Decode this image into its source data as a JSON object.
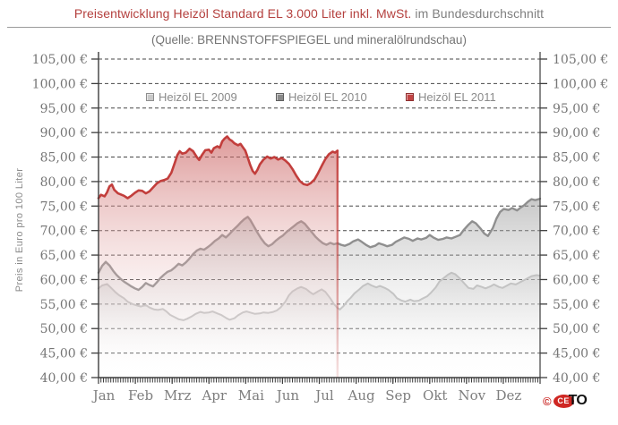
{
  "header": {
    "title_red": "Preisentwicklung Heizöl Standard EL 3.000 Liter inkl. MwSt.",
    "title_gray": "im Bundesdurchschnitt",
    "subtitle": "(Quelle: BRENNSTOFFSPIEGEL und mineralölrundschau)"
  },
  "logo": {
    "symbol": "©",
    "letters_ce": "CE",
    "letter_t": "T",
    "letter_o": "O"
  },
  "chart_data": {
    "type": "line",
    "title": "Preisentwicklung Heizöl Standard EL 3.000 Liter inkl. MwSt. im Bundesdurchschnitt",
    "subtitle": "(Quelle: BRENNSTOFFSPIEGEL und mineralölrundschau)",
    "xlabel": "",
    "ylabel": "Preis in Euro pro 100 Liter",
    "ylim": [
      40,
      105
    ],
    "ytick_step": 5,
    "ytick_suffix": " €",
    "number_format": "de-decimal-comma",
    "grid": "horizontal-dashed",
    "legend_position": "top-inside",
    "dual_y_axis": true,
    "categories": [
      "Jan",
      "Feb",
      "Mrz",
      "Apr",
      "Mai",
      "Jun",
      "Jul",
      "Aug",
      "Sep",
      "Okt",
      "Nov",
      "Dez"
    ],
    "x_unit": "day-of-year",
    "colors": {
      "grid": "#474747",
      "axis": "#3d3d3d",
      "tick_label": "#767676"
    },
    "series": [
      {
        "name": "Heizöl EL 2009",
        "color": "#c2c2c2",
        "line_width": 2,
        "fill_from": "rgba(200,200,200,0.50)",
        "fill_to": "rgba(255,255,255,0)",
        "points": [
          [
            1,
            58.2
          ],
          [
            4,
            58.8
          ],
          [
            8,
            59.1
          ],
          [
            11,
            58.4
          ],
          [
            15,
            57.4
          ],
          [
            18,
            56.8
          ],
          [
            22,
            56.2
          ],
          [
            25,
            55.5
          ],
          [
            29,
            55.0
          ],
          [
            33,
            54.7
          ],
          [
            36,
            54.5
          ],
          [
            40,
            54.8
          ],
          [
            43,
            54.3
          ],
          [
            47,
            53.9
          ],
          [
            50,
            53.8
          ],
          [
            54,
            54.0
          ],
          [
            57,
            53.5
          ],
          [
            60,
            52.8
          ],
          [
            64,
            52.3
          ],
          [
            67,
            51.9
          ],
          [
            71,
            51.7
          ],
          [
            74,
            52.0
          ],
          [
            78,
            52.5
          ],
          [
            81,
            53.0
          ],
          [
            85,
            53.4
          ],
          [
            88,
            53.2
          ],
          [
            92,
            53.3
          ],
          [
            95,
            53.5
          ],
          [
            99,
            53.1
          ],
          [
            102,
            52.8
          ],
          [
            106,
            52.2
          ],
          [
            109,
            51.8
          ],
          [
            113,
            52.1
          ],
          [
            116,
            52.7
          ],
          [
            120,
            53.3
          ],
          [
            123,
            53.5
          ],
          [
            127,
            53.2
          ],
          [
            130,
            53.0
          ],
          [
            134,
            53.1
          ],
          [
            137,
            53.3
          ],
          [
            141,
            53.2
          ],
          [
            145,
            53.4
          ],
          [
            148,
            53.7
          ],
          [
            151,
            54.3
          ],
          [
            155,
            55.5
          ],
          [
            158,
            56.8
          ],
          [
            161,
            57.6
          ],
          [
            165,
            58.2
          ],
          [
            168,
            58.5
          ],
          [
            172,
            58.1
          ],
          [
            175,
            57.5
          ],
          [
            178,
            57.0
          ],
          [
            182,
            57.6
          ],
          [
            185,
            58.0
          ],
          [
            188,
            57.5
          ],
          [
            192,
            56.2
          ],
          [
            195,
            55.0
          ],
          [
            198,
            54.2
          ],
          [
            200,
            53.9
          ],
          [
            203,
            54.6
          ],
          [
            206,
            55.6
          ],
          [
            209,
            56.3
          ],
          [
            212,
            57.2
          ],
          [
            216,
            58.0
          ],
          [
            219,
            58.7
          ],
          [
            223,
            59.2
          ],
          [
            226,
            58.8
          ],
          [
            230,
            58.4
          ],
          [
            233,
            58.7
          ],
          [
            237,
            58.3
          ],
          [
            240,
            57.9
          ],
          [
            244,
            57.1
          ],
          [
            247,
            56.2
          ],
          [
            251,
            55.7
          ],
          [
            254,
            55.5
          ],
          [
            258,
            55.9
          ],
          [
            261,
            55.6
          ],
          [
            265,
            55.7
          ],
          [
            268,
            56.1
          ],
          [
            272,
            56.6
          ],
          [
            275,
            57.3
          ],
          [
            279,
            58.4
          ],
          [
            282,
            59.6
          ],
          [
            286,
            60.4
          ],
          [
            289,
            61.0
          ],
          [
            292,
            61.4
          ],
          [
            295,
            61.1
          ],
          [
            299,
            60.2
          ],
          [
            303,
            59.1
          ],
          [
            306,
            58.3
          ],
          [
            310,
            58.1
          ],
          [
            313,
            58.8
          ],
          [
            317,
            58.5
          ],
          [
            320,
            58.2
          ],
          [
            324,
            58.6
          ],
          [
            327,
            59.0
          ],
          [
            331,
            58.5
          ],
          [
            334,
            58.3
          ],
          [
            338,
            58.8
          ],
          [
            341,
            59.2
          ],
          [
            345,
            59.0
          ],
          [
            348,
            59.4
          ],
          [
            352,
            59.9
          ],
          [
            355,
            60.3
          ],
          [
            358,
            60.7
          ],
          [
            362,
            60.9
          ],
          [
            365,
            60.8
          ]
        ]
      },
      {
        "name": "Heizöl EL 2010",
        "color": "#8f8f8f",
        "line_width": 2.4,
        "fill_from": "rgba(145,145,145,0.50)",
        "fill_to": "rgba(255,255,255,0)",
        "points": [
          [
            1,
            61.4
          ],
          [
            4,
            62.8
          ],
          [
            7,
            63.6
          ],
          [
            10,
            62.9
          ],
          [
            13,
            61.8
          ],
          [
            16,
            60.9
          ],
          [
            19,
            60.2
          ],
          [
            22,
            59.6
          ],
          [
            25,
            59.1
          ],
          [
            28,
            58.6
          ],
          [
            31,
            58.2
          ],
          [
            34,
            57.9
          ],
          [
            37,
            58.5
          ],
          [
            40,
            59.3
          ],
          [
            43,
            58.9
          ],
          [
            46,
            58.6
          ],
          [
            49,
            59.4
          ],
          [
            52,
            60.3
          ],
          [
            55,
            61.0
          ],
          [
            58,
            61.6
          ],
          [
            61,
            61.9
          ],
          [
            64,
            62.5
          ],
          [
            67,
            63.2
          ],
          [
            70,
            62.9
          ],
          [
            73,
            63.5
          ],
          [
            76,
            64.3
          ],
          [
            79,
            65.2
          ],
          [
            82,
            65.9
          ],
          [
            85,
            66.3
          ],
          [
            88,
            66.1
          ],
          [
            91,
            66.6
          ],
          [
            94,
            67.2
          ],
          [
            97,
            67.9
          ],
          [
            100,
            68.4
          ],
          [
            103,
            69.1
          ],
          [
            106,
            68.6
          ],
          [
            109,
            69.3
          ],
          [
            112,
            70.1
          ],
          [
            115,
            70.8
          ],
          [
            118,
            71.6
          ],
          [
            121,
            72.3
          ],
          [
            124,
            72.8
          ],
          [
            126,
            72.2
          ],
          [
            129,
            70.9
          ],
          [
            132,
            69.6
          ],
          [
            135,
            68.4
          ],
          [
            138,
            67.4
          ],
          [
            141,
            66.8
          ],
          [
            144,
            67.2
          ],
          [
            147,
            67.9
          ],
          [
            150,
            68.5
          ],
          [
            153,
            69.0
          ],
          [
            156,
            69.7
          ],
          [
            159,
            70.3
          ],
          [
            162,
            70.9
          ],
          [
            165,
            71.5
          ],
          [
            168,
            71.9
          ],
          [
            171,
            71.4
          ],
          [
            174,
            70.5
          ],
          [
            177,
            69.6
          ],
          [
            180,
            68.7
          ],
          [
            183,
            68.0
          ],
          [
            186,
            67.4
          ],
          [
            189,
            67.1
          ],
          [
            192,
            67.5
          ],
          [
            195,
            67.2
          ],
          [
            198,
            67.4
          ],
          [
            201,
            67.1
          ],
          [
            204,
            66.9
          ],
          [
            208,
            67.3
          ],
          [
            211,
            67.8
          ],
          [
            215,
            68.2
          ],
          [
            218,
            67.7
          ],
          [
            222,
            67.0
          ],
          [
            225,
            66.6
          ],
          [
            229,
            66.9
          ],
          [
            232,
            67.4
          ],
          [
            236,
            67.1
          ],
          [
            239,
            66.8
          ],
          [
            243,
            67.1
          ],
          [
            246,
            67.7
          ],
          [
            250,
            68.2
          ],
          [
            253,
            68.6
          ],
          [
            257,
            68.3
          ],
          [
            260,
            67.9
          ],
          [
            264,
            68.4
          ],
          [
            267,
            68.2
          ],
          [
            271,
            68.5
          ],
          [
            274,
            69.1
          ],
          [
            277,
            68.6
          ],
          [
            281,
            68.1
          ],
          [
            285,
            68.3
          ],
          [
            288,
            68.6
          ],
          [
            292,
            68.4
          ],
          [
            296,
            68.8
          ],
          [
            299,
            69.1
          ],
          [
            302,
            70.1
          ],
          [
            306,
            71.2
          ],
          [
            309,
            71.9
          ],
          [
            312,
            71.5
          ],
          [
            316,
            70.4
          ],
          [
            319,
            69.4
          ],
          [
            322,
            68.9
          ],
          [
            326,
            70.5
          ],
          [
            329,
            72.4
          ],
          [
            332,
            73.8
          ],
          [
            335,
            74.4
          ],
          [
            339,
            74.2
          ],
          [
            342,
            74.6
          ],
          [
            346,
            74.1
          ],
          [
            349,
            74.7
          ],
          [
            352,
            75.2
          ],
          [
            355,
            75.9
          ],
          [
            358,
            76.4
          ],
          [
            361,
            76.2
          ],
          [
            365,
            76.5
          ]
        ]
      },
      {
        "name": "Heizöl EL 2011",
        "color": "#c23e3c",
        "line_width": 2.6,
        "fill_from": "rgba(201,93,92,0.62)",
        "fill_to": "rgba(255,255,255,0)",
        "end_marker": "vertical-drop-line",
        "points": [
          [
            1,
            76.6
          ],
          [
            3,
            77.3
          ],
          [
            6,
            77.0
          ],
          [
            8,
            77.8
          ],
          [
            10,
            79.0
          ],
          [
            12,
            79.4
          ],
          [
            14,
            78.3
          ],
          [
            17,
            77.6
          ],
          [
            20,
            77.3
          ],
          [
            22,
            77.1
          ],
          [
            25,
            76.6
          ],
          [
            28,
            77.1
          ],
          [
            31,
            77.7
          ],
          [
            34,
            78.2
          ],
          [
            37,
            78.1
          ],
          [
            40,
            77.6
          ],
          [
            43,
            78.0
          ],
          [
            46,
            78.8
          ],
          [
            49,
            79.6
          ],
          [
            52,
            80.1
          ],
          [
            55,
            80.3
          ],
          [
            58,
            80.6
          ],
          [
            61,
            81.8
          ],
          [
            64,
            83.9
          ],
          [
            66,
            85.4
          ],
          [
            68,
            86.2
          ],
          [
            70,
            85.7
          ],
          [
            73,
            85.9
          ],
          [
            76,
            86.7
          ],
          [
            79,
            86.2
          ],
          [
            82,
            85.0
          ],
          [
            84,
            84.4
          ],
          [
            86,
            85.3
          ],
          [
            89,
            86.4
          ],
          [
            92,
            86.5
          ],
          [
            94,
            85.9
          ],
          [
            96,
            86.8
          ],
          [
            99,
            87.2
          ],
          [
            101,
            86.9
          ],
          [
            103,
            88.2
          ],
          [
            105,
            88.8
          ],
          [
            107,
            89.2
          ],
          [
            109,
            88.6
          ],
          [
            111,
            88.3
          ],
          [
            113,
            87.8
          ],
          [
            116,
            87.4
          ],
          [
            118,
            87.7
          ],
          [
            120,
            87.0
          ],
          [
            122,
            86.3
          ],
          [
            124,
            84.9
          ],
          [
            126,
            83.4
          ],
          [
            128,
            82.2
          ],
          [
            130,
            81.6
          ],
          [
            132,
            82.4
          ],
          [
            134,
            83.5
          ],
          [
            137,
            84.5
          ],
          [
            140,
            85.1
          ],
          [
            143,
            84.7
          ],
          [
            146,
            85.0
          ],
          [
            149,
            84.5
          ],
          [
            152,
            84.8
          ],
          [
            155,
            84.3
          ],
          [
            158,
            83.6
          ],
          [
            161,
            82.5
          ],
          [
            164,
            81.2
          ],
          [
            167,
            80.1
          ],
          [
            170,
            79.5
          ],
          [
            173,
            79.3
          ],
          [
            176,
            79.7
          ],
          [
            179,
            80.4
          ],
          [
            182,
            81.7
          ],
          [
            185,
            83.2
          ],
          [
            188,
            84.6
          ],
          [
            191,
            85.6
          ],
          [
            194,
            86.1
          ],
          [
            196,
            85.9
          ],
          [
            198,
            86.3
          ]
        ]
      }
    ]
  }
}
